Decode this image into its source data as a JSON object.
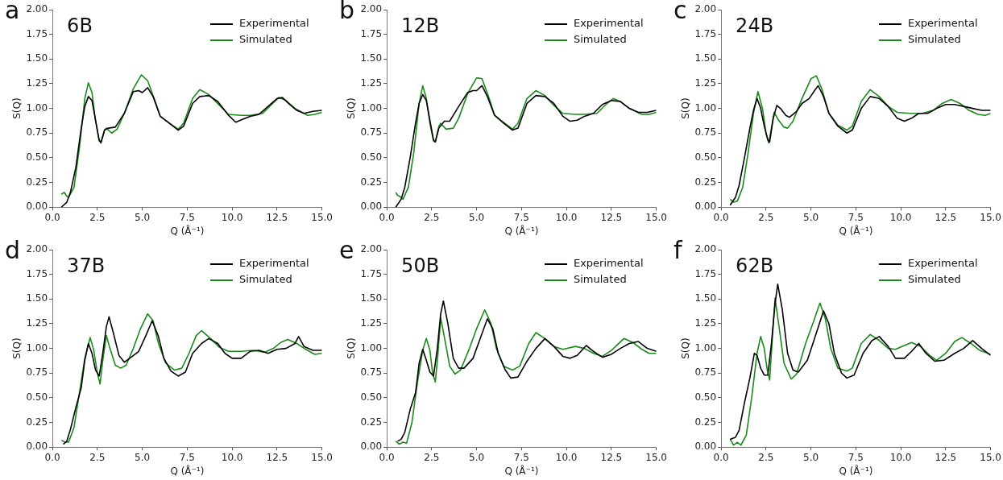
{
  "chart_data": [
    {
      "type": "line",
      "title": "a",
      "annotations": [
        "6B"
      ],
      "xlabel": "Q (Å⁻¹)",
      "ylabel": "S(Q)",
      "xlim": [
        0,
        15
      ],
      "ylim": [
        0,
        2
      ],
      "xticks": [
        {
          "value": 0,
          "label": "0.0"
        },
        {
          "value": 2.5,
          "label": "2.5"
        },
        {
          "value": 5,
          "label": "5.0"
        },
        {
          "value": 7.5,
          "label": "7.5"
        },
        {
          "value": 10,
          "label": "10.0"
        },
        {
          "value": 12.5,
          "label": "12.5"
        },
        {
          "value": 15,
          "label": "15.0"
        }
      ],
      "yticks": [
        {
          "value": 0,
          "label": "0.00"
        },
        {
          "value": 0.25,
          "label": "0.25"
        },
        {
          "value": 0.5,
          "label": "0.50"
        },
        {
          "value": 0.75,
          "label": "0.75"
        },
        {
          "value": 1,
          "label": "1.00"
        },
        {
          "value": 1.25,
          "label": "1.25"
        },
        {
          "value": 1.5,
          "label": "1.50"
        },
        {
          "value": 1.75,
          "label": "1.75"
        },
        {
          "value": 2,
          "label": "2.00"
        }
      ],
      "legend": "top right",
      "grid": false,
      "marker": "none",
      "series": [
        {
          "name": "Experimental",
          "color": "#000000",
          "x": [
            0.5,
            0.8,
            1.0,
            1.3,
            1.6,
            1.8,
            2.0,
            2.2,
            2.4,
            2.6,
            2.7,
            2.9,
            3.1,
            3.5,
            4.0,
            4.5,
            4.8,
            5.0,
            5.3,
            5.6,
            6.0,
            6.5,
            7.0,
            7.3,
            7.8,
            8.2,
            8.7,
            9.2,
            9.8,
            10.2,
            10.6,
            11.0,
            11.5,
            12.0,
            12.5,
            12.8,
            13.2,
            13.6,
            14.0,
            14.5,
            15.0
          ],
          "values": [
            0,
            0.05,
            0.15,
            0.4,
            0.8,
            1.02,
            1.12,
            1.08,
            0.88,
            0.68,
            0.65,
            0.78,
            0.8,
            0.81,
            0.95,
            1.17,
            1.18,
            1.16,
            1.21,
            1.12,
            0.92,
            0.85,
            0.78,
            0.82,
            1.05,
            1.12,
            1.13,
            1.07,
            0.93,
            0.86,
            0.89,
            0.92,
            0.94,
            1.02,
            1.1,
            1.11,
            1.04,
            0.98,
            0.95,
            0.97,
            0.98
          ]
        },
        {
          "name": "Simulated",
          "color": "#1a8a1a",
          "x": [
            0.5,
            0.65,
            0.8,
            0.9,
            1.2,
            1.5,
            1.8,
            2.0,
            2.2,
            2.4,
            2.6,
            2.7,
            2.9,
            3.0,
            3.3,
            3.6,
            4.0,
            4.5,
            4.95,
            5.3,
            5.7,
            6.0,
            6.5,
            7.0,
            7.3,
            7.8,
            8.2,
            8.7,
            9.3,
            9.8,
            10.5,
            11.0,
            11.7,
            12.2,
            12.6,
            13.0,
            13.5,
            14.2,
            14.6,
            15.0
          ],
          "values": [
            0.13,
            0.15,
            0.11,
            0.1,
            0.2,
            0.6,
            1.1,
            1.26,
            1.16,
            0.87,
            0.67,
            0.66,
            0.78,
            0.8,
            0.75,
            0.79,
            0.95,
            1.2,
            1.34,
            1.28,
            1.08,
            0.92,
            0.85,
            0.79,
            0.85,
            1.1,
            1.19,
            1.14,
            1.03,
            0.94,
            0.93,
            0.93,
            0.95,
            1.04,
            1.11,
            1.08,
            1.0,
            0.93,
            0.94,
            0.96
          ]
        }
      ]
    },
    {
      "type": "line",
      "title": "b",
      "annotations": [
        "12B"
      ],
      "xlabel": "Q (Å⁻¹)",
      "ylabel": "S(Q)",
      "xlim": [
        0,
        15
      ],
      "ylim": [
        0,
        2
      ],
      "xticks": [
        {
          "value": 0,
          "label": "0.0"
        },
        {
          "value": 2.5,
          "label": "2.5"
        },
        {
          "value": 5,
          "label": "5.0"
        },
        {
          "value": 7.5,
          "label": "7.5"
        },
        {
          "value": 10,
          "label": "10.0"
        },
        {
          "value": 12.5,
          "label": "12.5"
        },
        {
          "value": 15,
          "label": "15.0"
        }
      ],
      "yticks": [
        {
          "value": 0,
          "label": "0.00"
        },
        {
          "value": 0.25,
          "label": "0.25"
        },
        {
          "value": 0.5,
          "label": "0.50"
        },
        {
          "value": 0.75,
          "label": "0.75"
        },
        {
          "value": 1,
          "label": "1.00"
        },
        {
          "value": 1.25,
          "label": "1.25"
        },
        {
          "value": 1.5,
          "label": "1.50"
        },
        {
          "value": 1.75,
          "label": "1.75"
        },
        {
          "value": 2,
          "label": "2.00"
        }
      ],
      "legend": "top right",
      "grid": false,
      "marker": "none",
      "series": [
        {
          "name": "Experimental",
          "color": "#000000",
          "x": [
            0.5,
            0.8,
            1.0,
            1.3,
            1.6,
            1.8,
            2.0,
            2.2,
            2.4,
            2.6,
            2.7,
            2.9,
            3.2,
            3.5,
            4.0,
            4.5,
            4.8,
            5.0,
            5.3,
            5.6,
            6.0,
            6.5,
            7.0,
            7.3,
            7.8,
            8.3,
            8.8,
            9.3,
            9.8,
            10.2,
            10.6,
            11.0,
            11.5,
            12.0,
            12.5,
            13.0,
            13.5,
            14.0,
            14.5,
            15.0
          ],
          "values": [
            0,
            0.08,
            0.2,
            0.5,
            0.85,
            1.05,
            1.14,
            1.08,
            0.88,
            0.68,
            0.66,
            0.8,
            0.87,
            0.87,
            1.02,
            1.16,
            1.18,
            1.18,
            1.23,
            1.12,
            0.93,
            0.85,
            0.78,
            0.8,
            1.05,
            1.13,
            1.12,
            1.05,
            0.92,
            0.87,
            0.88,
            0.92,
            0.95,
            1.04,
            1.08,
            1.07,
            1.0,
            0.96,
            0.96,
            0.98
          ]
        },
        {
          "name": "Simulated",
          "color": "#1a8a1a",
          "x": [
            0.5,
            0.6,
            0.8,
            0.9,
            1.2,
            1.5,
            1.8,
            2.0,
            2.2,
            2.4,
            2.6,
            2.7,
            2.9,
            3.0,
            3.3,
            3.7,
            4.0,
            4.5,
            5.0,
            5.3,
            5.7,
            6.0,
            6.5,
            7.0,
            7.3,
            7.8,
            8.3,
            8.8,
            9.3,
            9.8,
            10.5,
            11.0,
            11.7,
            12.2,
            12.6,
            13.0,
            13.5,
            14.2,
            14.6,
            15.0
          ],
          "values": [
            0.15,
            0.12,
            0.1,
            0.08,
            0.2,
            0.55,
            1.05,
            1.23,
            1.1,
            0.85,
            0.67,
            0.66,
            0.82,
            0.85,
            0.79,
            0.8,
            0.9,
            1.15,
            1.31,
            1.3,
            1.1,
            0.93,
            0.86,
            0.79,
            0.85,
            1.1,
            1.18,
            1.13,
            1.03,
            0.95,
            0.94,
            0.94,
            0.95,
            1.04,
            1.1,
            1.07,
            1.0,
            0.94,
            0.94,
            0.96
          ]
        }
      ]
    },
    {
      "type": "line",
      "title": "c",
      "annotations": [
        "24B"
      ],
      "xlabel": "Q (Å⁻¹)",
      "ylabel": "S(Q)",
      "xlim": [
        0,
        15
      ],
      "ylim": [
        0,
        2
      ],
      "xticks": [
        {
          "value": 0,
          "label": "0.0"
        },
        {
          "value": 2.5,
          "label": "2.5"
        },
        {
          "value": 5,
          "label": "5.0"
        },
        {
          "value": 7.5,
          "label": "7.5"
        },
        {
          "value": 10,
          "label": "10.0"
        },
        {
          "value": 12.5,
          "label": "12.5"
        },
        {
          "value": 15,
          "label": "15.0"
        }
      ],
      "yticks": [
        {
          "value": 0,
          "label": "0.00"
        },
        {
          "value": 0.25,
          "label": "0.25"
        },
        {
          "value": 0.5,
          "label": "0.50"
        },
        {
          "value": 0.75,
          "label": "0.75"
        },
        {
          "value": 1,
          "label": "1.00"
        },
        {
          "value": 1.25,
          "label": "1.25"
        },
        {
          "value": 1.5,
          "label": "1.50"
        },
        {
          "value": 1.75,
          "label": "1.75"
        },
        {
          "value": 2,
          "label": "2.00"
        }
      ],
      "legend": "top right",
      "grid": false,
      "marker": "none",
      "series": [
        {
          "name": "Experimental",
          "color": "#000000",
          "x": [
            0.5,
            0.8,
            1.0,
            1.3,
            1.6,
            1.8,
            2.0,
            2.2,
            2.4,
            2.6,
            2.7,
            2.9,
            3.1,
            3.3,
            3.6,
            3.8,
            4.2,
            4.5,
            4.9,
            5.2,
            5.4,
            5.7,
            6.0,
            6.5,
            7.0,
            7.3,
            7.8,
            8.3,
            8.8,
            9.3,
            9.8,
            10.2,
            10.6,
            11.0,
            11.5,
            12.0,
            12.5,
            13.0,
            13.5,
            14.0,
            14.5,
            15.0
          ],
          "values": [
            0.02,
            0.1,
            0.22,
            0.5,
            0.8,
            0.98,
            1.1,
            1.0,
            0.82,
            0.68,
            0.66,
            0.9,
            1.03,
            1.0,
            0.93,
            0.91,
            0.97,
            1.05,
            1.1,
            1.18,
            1.23,
            1.12,
            0.95,
            0.82,
            0.75,
            0.78,
            1.0,
            1.12,
            1.1,
            1.02,
            0.9,
            0.87,
            0.9,
            0.95,
            0.95,
            1.0,
            1.04,
            1.04,
            1.02,
            1.0,
            0.98,
            0.98
          ]
        },
        {
          "name": "Simulated",
          "color": "#1a8a1a",
          "x": [
            0.5,
            0.7,
            0.9,
            1.2,
            1.5,
            1.8,
            2.05,
            2.3,
            2.5,
            2.65,
            2.8,
            2.95,
            3.2,
            3.5,
            3.7,
            4.0,
            4.5,
            5.0,
            5.3,
            5.6,
            6.0,
            6.5,
            7.0,
            7.3,
            7.8,
            8.3,
            8.8,
            9.3,
            9.8,
            10.5,
            11.2,
            11.8,
            12.3,
            12.8,
            13.3,
            13.8,
            14.3,
            14.7,
            15.0
          ],
          "values": [
            0.08,
            0.05,
            0.06,
            0.2,
            0.55,
            0.95,
            1.17,
            1.0,
            0.75,
            0.65,
            0.8,
            0.96,
            0.88,
            0.81,
            0.8,
            0.87,
            1.1,
            1.3,
            1.33,
            1.2,
            0.95,
            0.83,
            0.78,
            0.82,
            1.07,
            1.19,
            1.12,
            1.02,
            0.96,
            0.95,
            0.95,
            0.98,
            1.05,
            1.09,
            1.05,
            0.98,
            0.94,
            0.93,
            0.95
          ]
        }
      ]
    },
    {
      "type": "line",
      "title": "d",
      "annotations": [
        "37B"
      ],
      "xlabel": "Q (Å⁻¹)",
      "ylabel": "S(Q)",
      "xlim": [
        0,
        15
      ],
      "ylim": [
        0,
        2
      ],
      "xticks": [
        {
          "value": 0,
          "label": "0.0"
        },
        {
          "value": 2.5,
          "label": "2.5"
        },
        {
          "value": 5,
          "label": "5.0"
        },
        {
          "value": 7.5,
          "label": "7.5"
        },
        {
          "value": 10,
          "label": "10.0"
        },
        {
          "value": 12.5,
          "label": "12.5"
        },
        {
          "value": 15,
          "label": "15.0"
        }
      ],
      "yticks": [
        {
          "value": 0,
          "label": "0.00"
        },
        {
          "value": 0.25,
          "label": "0.25"
        },
        {
          "value": 0.5,
          "label": "0.50"
        },
        {
          "value": 0.75,
          "label": "0.75"
        },
        {
          "value": 1,
          "label": "1.00"
        },
        {
          "value": 1.25,
          "label": "1.25"
        },
        {
          "value": 1.5,
          "label": "1.50"
        },
        {
          "value": 1.75,
          "label": "1.75"
        },
        {
          "value": 2,
          "label": "2.00"
        }
      ],
      "legend": "top right",
      "grid": false,
      "marker": "none",
      "series": [
        {
          "name": "Experimental",
          "color": "#000000",
          "x": [
            0.6,
            0.8,
            1.0,
            1.3,
            1.6,
            1.8,
            2.0,
            2.2,
            2.4,
            2.6,
            2.8,
            3.0,
            3.15,
            3.4,
            3.7,
            4.0,
            4.3,
            4.8,
            5.2,
            5.55,
            5.9,
            6.2,
            6.6,
            7.0,
            7.4,
            7.8,
            8.3,
            8.7,
            9.2,
            9.6,
            10.0,
            10.5,
            11.0,
            11.5,
            12.0,
            12.5,
            13.0,
            13.5,
            13.7,
            14.0,
            14.5,
            15.0
          ],
          "values": [
            0.03,
            0.06,
            0.18,
            0.4,
            0.6,
            0.88,
            1.05,
            0.95,
            0.78,
            0.72,
            0.95,
            1.22,
            1.32,
            1.15,
            0.93,
            0.86,
            0.9,
            0.97,
            1.13,
            1.28,
            1.12,
            0.9,
            0.77,
            0.72,
            0.76,
            0.95,
            1.05,
            1.1,
            1.05,
            0.95,
            0.9,
            0.9,
            0.97,
            0.98,
            0.95,
            0.99,
            1.0,
            1.05,
            1.12,
            1.02,
            0.98,
            0.98
          ]
        },
        {
          "name": "Simulated",
          "color": "#1a8a1a",
          "x": [
            0.5,
            0.7,
            0.9,
            1.2,
            1.5,
            1.8,
            2.1,
            2.3,
            2.5,
            2.65,
            2.8,
            3.0,
            3.2,
            3.5,
            3.8,
            4.1,
            4.5,
            4.9,
            5.3,
            5.6,
            5.9,
            6.3,
            6.8,
            7.2,
            7.6,
            8.0,
            8.3,
            8.8,
            9.3,
            9.8,
            10.5,
            11.2,
            11.8,
            12.3,
            12.7,
            13.1,
            13.6,
            14.1,
            14.6,
            15.0
          ],
          "values": [
            0.07,
            0.05,
            0.05,
            0.2,
            0.55,
            0.9,
            1.11,
            0.98,
            0.75,
            0.64,
            0.88,
            1.13,
            1.0,
            0.83,
            0.8,
            0.83,
            1.0,
            1.2,
            1.35,
            1.28,
            1.05,
            0.85,
            0.78,
            0.8,
            0.95,
            1.13,
            1.18,
            1.1,
            1.01,
            0.97,
            0.97,
            0.98,
            0.96,
            1.0,
            1.06,
            1.09,
            1.05,
            0.99,
            0.94,
            0.95
          ]
        }
      ]
    },
    {
      "type": "line",
      "title": "e",
      "annotations": [
        "50B"
      ],
      "xlabel": "Q (Å⁻¹)",
      "ylabel": "S(Q)",
      "xlim": [
        0,
        15
      ],
      "ylim": [
        0,
        2
      ],
      "xticks": [
        {
          "value": 0,
          "label": "0.0"
        },
        {
          "value": 2.5,
          "label": "2.5"
        },
        {
          "value": 5,
          "label": "5.0"
        },
        {
          "value": 7.5,
          "label": "7.5"
        },
        {
          "value": 10,
          "label": "10.0"
        },
        {
          "value": 12.5,
          "label": "12.5"
        },
        {
          "value": 15,
          "label": "15.0"
        }
      ],
      "yticks": [
        {
          "value": 0,
          "label": "0.00"
        },
        {
          "value": 0.25,
          "label": "0.25"
        },
        {
          "value": 0.5,
          "label": "0.50"
        },
        {
          "value": 0.75,
          "label": "0.75"
        },
        {
          "value": 1,
          "label": "1.00"
        },
        {
          "value": 1.25,
          "label": "1.25"
        },
        {
          "value": 1.5,
          "label": "1.50"
        },
        {
          "value": 1.75,
          "label": "1.75"
        },
        {
          "value": 2,
          "label": "2.00"
        }
      ],
      "legend": "top right",
      "grid": false,
      "marker": "none",
      "series": [
        {
          "name": "Experimental",
          "color": "#000000",
          "x": [
            0.6,
            0.8,
            1.0,
            1.3,
            1.6,
            1.8,
            2.0,
            2.2,
            2.4,
            2.6,
            2.8,
            3.0,
            3.15,
            3.4,
            3.7,
            4.0,
            4.3,
            4.8,
            5.2,
            5.6,
            5.9,
            6.2,
            6.6,
            6.9,
            7.3,
            7.8,
            8.3,
            8.8,
            9.3,
            9.8,
            10.2,
            10.6,
            11.1,
            11.5,
            12.0,
            12.5,
            13.0,
            13.5,
            14.0,
            14.5,
            15.0
          ],
          "values": [
            0.06,
            0.08,
            0.15,
            0.38,
            0.55,
            0.85,
            0.99,
            0.88,
            0.76,
            0.72,
            0.98,
            1.35,
            1.48,
            1.25,
            0.9,
            0.8,
            0.8,
            0.9,
            1.1,
            1.3,
            1.2,
            0.95,
            0.78,
            0.7,
            0.71,
            0.87,
            1.0,
            1.1,
            1.02,
            0.92,
            0.9,
            0.93,
            1.03,
            0.97,
            0.91,
            0.94,
            1.0,
            1.05,
            1.07,
            1.0,
            0.97
          ]
        },
        {
          "name": "Simulated",
          "color": "#1a8a1a",
          "x": [
            0.5,
            0.7,
            0.9,
            1.1,
            1.4,
            1.7,
            2.0,
            2.2,
            2.4,
            2.55,
            2.7,
            2.85,
            3.0,
            3.2,
            3.5,
            3.8,
            4.1,
            4.6,
            5.0,
            5.45,
            5.8,
            6.1,
            6.5,
            7.0,
            7.4,
            7.9,
            8.3,
            8.8,
            9.3,
            9.8,
            10.5,
            11.0,
            11.5,
            12.0,
            12.5,
            13.2,
            13.7,
            14.2,
            14.6,
            15.0
          ],
          "values": [
            0.06,
            0.03,
            0.05,
            0.04,
            0.25,
            0.65,
            0.98,
            1.1,
            0.98,
            0.75,
            0.66,
            0.95,
            1.31,
            1.12,
            0.82,
            0.74,
            0.78,
            1.0,
            1.2,
            1.39,
            1.25,
            1.0,
            0.82,
            0.78,
            0.82,
            1.05,
            1.16,
            1.1,
            1.02,
            0.99,
            1.02,
            1.0,
            0.95,
            0.92,
            0.98,
            1.1,
            1.06,
            0.99,
            0.95,
            0.95
          ]
        }
      ]
    },
    {
      "type": "line",
      "title": "f",
      "annotations": [
        "62B"
      ],
      "xlabel": "Q (Å⁻¹)",
      "ylabel": "S(Q)",
      "xlim": [
        0,
        15
      ],
      "ylim": [
        0,
        2
      ],
      "xticks": [
        {
          "value": 0,
          "label": "0.0"
        },
        {
          "value": 2.5,
          "label": "2.5"
        },
        {
          "value": 5,
          "label": "5.0"
        },
        {
          "value": 7.5,
          "label": "7.5"
        },
        {
          "value": 10,
          "label": "10.0"
        },
        {
          "value": 12.5,
          "label": "12.5"
        },
        {
          "value": 15,
          "label": "15.0"
        }
      ],
      "yticks": [
        {
          "value": 0,
          "label": "0.00"
        },
        {
          "value": 0.25,
          "label": "0.25"
        },
        {
          "value": 0.5,
          "label": "0.50"
        },
        {
          "value": 0.75,
          "label": "0.75"
        },
        {
          "value": 1,
          "label": "1.00"
        },
        {
          "value": 1.25,
          "label": "1.25"
        },
        {
          "value": 1.5,
          "label": "1.50"
        },
        {
          "value": 1.75,
          "label": "1.75"
        },
        {
          "value": 2,
          "label": "2.00"
        }
      ],
      "legend": "top right",
      "grid": false,
      "marker": "none",
      "series": [
        {
          "name": "Experimental",
          "color": "#000000",
          "x": [
            0.5,
            0.8,
            1.0,
            1.3,
            1.6,
            1.85,
            2.0,
            2.2,
            2.4,
            2.6,
            2.8,
            3.0,
            3.15,
            3.4,
            3.7,
            4.0,
            4.3,
            4.8,
            5.2,
            5.7,
            6.0,
            6.3,
            6.7,
            7.0,
            7.4,
            7.9,
            8.4,
            8.8,
            9.3,
            9.7,
            10.2,
            10.6,
            11.0,
            11.4,
            11.9,
            12.4,
            13.0,
            13.5,
            14.0,
            14.5,
            15.0
          ],
          "values": [
            0.08,
            0.1,
            0.17,
            0.45,
            0.7,
            0.95,
            0.93,
            0.8,
            0.73,
            0.73,
            1.05,
            1.45,
            1.65,
            1.4,
            0.95,
            0.78,
            0.76,
            0.88,
            1.1,
            1.38,
            1.25,
            0.95,
            0.75,
            0.7,
            0.73,
            0.95,
            1.08,
            1.12,
            1.02,
            0.9,
            0.9,
            0.97,
            1.05,
            0.95,
            0.87,
            0.88,
            0.95,
            1.0,
            1.08,
            1.0,
            0.93
          ]
        },
        {
          "name": "Simulated",
          "color": "#1a8a1a",
          "x": [
            0.5,
            0.7,
            0.9,
            1.1,
            1.4,
            1.7,
            2.0,
            2.2,
            2.4,
            2.55,
            2.7,
            2.85,
            3.0,
            3.2,
            3.5,
            3.9,
            4.2,
            4.7,
            5.1,
            5.5,
            5.8,
            6.1,
            6.5,
            7.0,
            7.3,
            7.8,
            8.3,
            8.8,
            9.3,
            9.7,
            10.2,
            10.6,
            11.1,
            11.6,
            12.0,
            12.5,
            13.0,
            13.4,
            13.9,
            14.4,
            15.0
          ],
          "values": [
            0.08,
            0.02,
            0.05,
            0.02,
            0.12,
            0.5,
            0.95,
            1.12,
            1.0,
            0.8,
            0.68,
            1.1,
            1.51,
            1.25,
            0.85,
            0.69,
            0.74,
            1.05,
            1.25,
            1.46,
            1.3,
            1.0,
            0.8,
            0.77,
            0.8,
            1.05,
            1.14,
            1.08,
            1.0,
            0.99,
            1.03,
            1.06,
            1.02,
            0.93,
            0.88,
            0.95,
            1.07,
            1.11,
            1.05,
            0.98,
            0.94
          ]
        }
      ]
    }
  ]
}
